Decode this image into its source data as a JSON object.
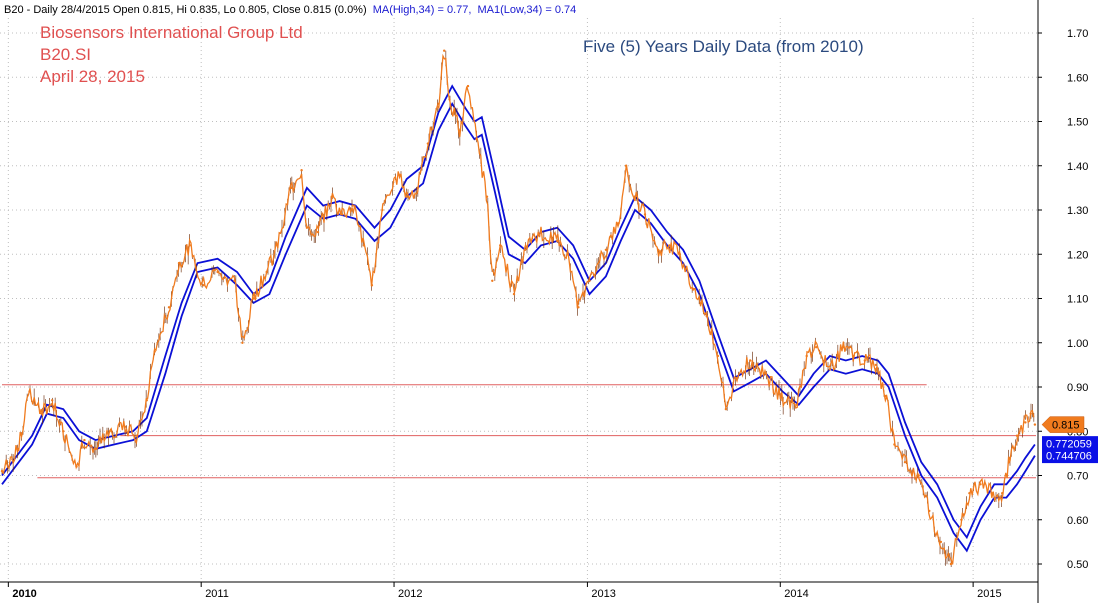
{
  "header": {
    "prefix": "B20 - Daily 28/4/2015 Open 0.815, Hi 0.835, Lo 0.805, Close 0.815 (0.0%)",
    "ma_high": "MA(High,34) = 0.77,",
    "ma_low": "MA1(Low,34) = 0.74"
  },
  "annotations": {
    "company": "Biosensors International Group Ltd",
    "ticker": "B20.SI",
    "date": "April 28, 2015",
    "note": "Five (5) Years Daily Data (from 2010)"
  },
  "colors": {
    "price": "#f07b1e",
    "price_dark": "#6b2a06",
    "ma": "#0b10d6",
    "support_line": "#e06060",
    "grid": "#bfbfbf",
    "text_blue": "#2b4a7f",
    "text_red": "#e05050",
    "axis_text": "#000000"
  },
  "chart_data": {
    "type": "line",
    "title": "",
    "xlabel": "",
    "ylabel": "",
    "ylim": [
      0.47,
      1.73
    ],
    "xlim": [
      "2009-12-20",
      "2015-04-30"
    ],
    "grid": true,
    "y_ticks": [
      "0.50",
      "0.60",
      "0.70",
      "0.80",
      "0.90",
      "1.00",
      "1.10",
      "1.20",
      "1.30",
      "1.40",
      "1.50",
      "1.60",
      "1.70"
    ],
    "x_ticks": [
      {
        "label": "2010",
        "date": "2010-01-01"
      },
      {
        "label": "2011",
        "date": "2011-01-01"
      },
      {
        "label": "2012",
        "date": "2012-01-01"
      },
      {
        "label": "2013",
        "date": "2013-01-01"
      },
      {
        "label": "2014",
        "date": "2014-01-01"
      },
      {
        "label": "2015",
        "date": "2015-01-01"
      }
    ],
    "series": [
      {
        "key": "close",
        "points": [
          [
            "2009-12-20",
            0.71
          ],
          [
            "2010-01-20",
            0.76
          ],
          [
            "2010-02-10",
            0.89
          ],
          [
            "2010-03-05",
            0.84
          ],
          [
            "2010-03-25",
            0.87
          ],
          [
            "2010-04-15",
            0.8
          ],
          [
            "2010-05-10",
            0.72
          ],
          [
            "2010-05-25",
            0.78
          ],
          [
            "2010-06-15",
            0.76
          ],
          [
            "2010-07-15",
            0.8
          ],
          [
            "2010-08-10",
            0.81
          ],
          [
            "2010-09-01",
            0.79
          ],
          [
            "2010-09-20",
            0.87
          ],
          [
            "2010-10-05",
            0.98
          ],
          [
            "2010-11-01",
            1.08
          ],
          [
            "2010-11-20",
            1.18
          ],
          [
            "2010-12-10",
            1.22
          ],
          [
            "2011-01-05",
            1.13
          ],
          [
            "2011-02-01",
            1.16
          ],
          [
            "2011-03-05",
            1.14
          ],
          [
            "2011-03-20",
            1.0
          ],
          [
            "2011-04-10",
            1.1
          ],
          [
            "2011-05-05",
            1.16
          ],
          [
            "2011-05-25",
            1.22
          ],
          [
            "2011-06-20",
            1.35
          ],
          [
            "2011-07-10",
            1.39
          ],
          [
            "2011-07-20",
            1.26
          ],
          [
            "2011-08-10",
            1.25
          ],
          [
            "2011-09-05",
            1.33
          ],
          [
            "2011-09-25",
            1.29
          ],
          [
            "2011-10-15",
            1.31
          ],
          [
            "2011-11-05",
            1.22
          ],
          [
            "2011-11-20",
            1.13
          ],
          [
            "2011-12-10",
            1.3
          ],
          [
            "2012-01-10",
            1.38
          ],
          [
            "2012-01-25",
            1.33
          ],
          [
            "2012-02-15",
            1.35
          ],
          [
            "2012-03-05",
            1.45
          ],
          [
            "2012-03-25",
            1.54
          ],
          [
            "2012-04-05",
            1.66
          ],
          [
            "2012-04-15",
            1.55
          ],
          [
            "2012-05-05",
            1.48
          ],
          [
            "2012-05-20",
            1.58
          ],
          [
            "2012-06-05",
            1.46
          ],
          [
            "2012-06-25",
            1.33
          ],
          [
            "2012-07-05",
            1.14
          ],
          [
            "2012-07-20",
            1.22
          ],
          [
            "2012-08-15",
            1.11
          ],
          [
            "2012-09-05",
            1.21
          ],
          [
            "2012-10-05",
            1.25
          ],
          [
            "2012-11-05",
            1.23
          ],
          [
            "2012-11-25",
            1.2
          ],
          [
            "2012-12-15",
            1.08
          ],
          [
            "2013-01-05",
            1.14
          ],
          [
            "2013-02-05",
            1.21
          ],
          [
            "2013-03-01",
            1.27
          ],
          [
            "2013-03-15",
            1.4
          ],
          [
            "2013-04-01",
            1.33
          ],
          [
            "2013-04-20",
            1.29
          ],
          [
            "2013-05-15",
            1.21
          ],
          [
            "2013-06-05",
            1.22
          ],
          [
            "2013-06-25",
            1.2
          ],
          [
            "2013-07-20",
            1.12
          ],
          [
            "2013-08-15",
            1.06
          ],
          [
            "2013-09-05",
            0.97
          ],
          [
            "2013-09-20",
            0.85
          ],
          [
            "2013-10-10",
            0.92
          ],
          [
            "2013-11-05",
            0.96
          ],
          [
            "2013-12-05",
            0.93
          ],
          [
            "2014-01-05",
            0.87
          ],
          [
            "2014-02-01",
            0.86
          ],
          [
            "2014-02-20",
            0.97
          ],
          [
            "2014-03-10",
            0.99
          ],
          [
            "2014-04-05",
            0.94
          ],
          [
            "2014-05-01",
            0.99
          ],
          [
            "2014-05-20",
            0.97
          ],
          [
            "2014-06-10",
            0.96
          ],
          [
            "2014-07-01",
            0.95
          ],
          [
            "2014-07-20",
            0.88
          ],
          [
            "2014-08-05",
            0.77
          ],
          [
            "2014-08-25",
            0.73
          ],
          [
            "2014-09-20",
            0.7
          ],
          [
            "2014-10-10",
            0.62
          ],
          [
            "2014-11-01",
            0.55
          ],
          [
            "2014-11-20",
            0.5
          ],
          [
            "2014-12-10",
            0.6
          ],
          [
            "2014-12-25",
            0.66
          ],
          [
            "2015-01-15",
            0.68
          ],
          [
            "2015-02-05",
            0.66
          ],
          [
            "2015-02-25",
            0.66
          ],
          [
            "2015-03-10",
            0.73
          ],
          [
            "2015-03-25",
            0.79
          ],
          [
            "2015-04-10",
            0.82
          ],
          [
            "2015-04-20",
            0.84
          ],
          [
            "2015-04-28",
            0.815
          ]
        ]
      },
      {
        "key": "ma_high",
        "name": "MA(High,34)",
        "points": [
          [
            "2009-12-20",
            0.7
          ],
          [
            "2010-02-15",
            0.79
          ],
          [
            "2010-03-15",
            0.86
          ],
          [
            "2010-04-15",
            0.85
          ],
          [
            "2010-05-15",
            0.8
          ],
          [
            "2010-06-15",
            0.78
          ],
          [
            "2010-07-20",
            0.79
          ],
          [
            "2010-08-25",
            0.8
          ],
          [
            "2010-09-20",
            0.83
          ],
          [
            "2010-10-25",
            0.97
          ],
          [
            "2010-11-25",
            1.09
          ],
          [
            "2010-12-25",
            1.18
          ],
          [
            "2011-02-01",
            1.19
          ],
          [
            "2011-03-10",
            1.16
          ],
          [
            "2011-04-10",
            1.11
          ],
          [
            "2011-05-10",
            1.14
          ],
          [
            "2011-06-10",
            1.24
          ],
          [
            "2011-07-20",
            1.35
          ],
          [
            "2011-08-20",
            1.31
          ],
          [
            "2011-09-20",
            1.32
          ],
          [
            "2011-10-20",
            1.31
          ],
          [
            "2011-11-25",
            1.26
          ],
          [
            "2011-12-25",
            1.3
          ],
          [
            "2012-01-25",
            1.37
          ],
          [
            "2012-02-25",
            1.4
          ],
          [
            "2012-03-25",
            1.52
          ],
          [
            "2012-04-20",
            1.58
          ],
          [
            "2012-05-15",
            1.53
          ],
          [
            "2012-06-01",
            1.5
          ],
          [
            "2012-06-15",
            1.51
          ],
          [
            "2012-07-10",
            1.38
          ],
          [
            "2012-08-05",
            1.24
          ],
          [
            "2012-09-05",
            1.21
          ],
          [
            "2012-10-05",
            1.25
          ],
          [
            "2012-11-05",
            1.26
          ],
          [
            "2012-12-05",
            1.22
          ],
          [
            "2013-01-05",
            1.14
          ],
          [
            "2013-02-05",
            1.18
          ],
          [
            "2013-03-05",
            1.26
          ],
          [
            "2013-04-01",
            1.33
          ],
          [
            "2013-05-01",
            1.3
          ],
          [
            "2013-06-01",
            1.25
          ],
          [
            "2013-07-01",
            1.21
          ],
          [
            "2013-08-01",
            1.14
          ],
          [
            "2013-09-05",
            1.02
          ],
          [
            "2013-10-05",
            0.92
          ],
          [
            "2013-11-05",
            0.94
          ],
          [
            "2013-12-05",
            0.96
          ],
          [
            "2014-01-05",
            0.92
          ],
          [
            "2014-02-05",
            0.88
          ],
          [
            "2014-03-05",
            0.93
          ],
          [
            "2014-04-05",
            0.97
          ],
          [
            "2014-05-05",
            0.96
          ],
          [
            "2014-06-05",
            0.97
          ],
          [
            "2014-07-05",
            0.96
          ],
          [
            "2014-07-25",
            0.93
          ],
          [
            "2014-08-25",
            0.82
          ],
          [
            "2014-09-25",
            0.73
          ],
          [
            "2014-10-25",
            0.68
          ],
          [
            "2014-11-25",
            0.6
          ],
          [
            "2014-12-20",
            0.56
          ],
          [
            "2015-01-15",
            0.63
          ],
          [
            "2015-02-10",
            0.68
          ],
          [
            "2015-03-05",
            0.68
          ],
          [
            "2015-03-25",
            0.71
          ],
          [
            "2015-04-10",
            0.74
          ],
          [
            "2015-04-28",
            0.77
          ]
        ]
      },
      {
        "key": "ma_low",
        "name": "MA1(Low,34)",
        "points": [
          [
            "2009-12-20",
            0.68
          ],
          [
            "2010-02-15",
            0.77
          ],
          [
            "2010-03-15",
            0.84
          ],
          [
            "2010-04-15",
            0.83
          ],
          [
            "2010-05-15",
            0.78
          ],
          [
            "2010-06-15",
            0.76
          ],
          [
            "2010-07-20",
            0.77
          ],
          [
            "2010-08-25",
            0.78
          ],
          [
            "2010-09-20",
            0.8
          ],
          [
            "2010-10-25",
            0.93
          ],
          [
            "2010-11-25",
            1.06
          ],
          [
            "2010-12-25",
            1.16
          ],
          [
            "2011-02-01",
            1.17
          ],
          [
            "2011-03-10",
            1.13
          ],
          [
            "2011-04-10",
            1.09
          ],
          [
            "2011-05-10",
            1.11
          ],
          [
            "2011-06-10",
            1.2
          ],
          [
            "2011-07-20",
            1.31
          ],
          [
            "2011-08-20",
            1.28
          ],
          [
            "2011-09-20",
            1.29
          ],
          [
            "2011-10-20",
            1.28
          ],
          [
            "2011-11-25",
            1.23
          ],
          [
            "2011-12-25",
            1.26
          ],
          [
            "2012-01-25",
            1.33
          ],
          [
            "2012-02-25",
            1.36
          ],
          [
            "2012-03-25",
            1.48
          ],
          [
            "2012-04-20",
            1.54
          ],
          [
            "2012-05-15",
            1.49
          ],
          [
            "2012-06-01",
            1.46
          ],
          [
            "2012-06-15",
            1.47
          ],
          [
            "2012-07-10",
            1.34
          ],
          [
            "2012-08-05",
            1.2
          ],
          [
            "2012-09-05",
            1.18
          ],
          [
            "2012-10-05",
            1.22
          ],
          [
            "2012-11-05",
            1.23
          ],
          [
            "2012-12-05",
            1.19
          ],
          [
            "2013-01-05",
            1.11
          ],
          [
            "2013-02-05",
            1.15
          ],
          [
            "2013-03-05",
            1.23
          ],
          [
            "2013-04-01",
            1.3
          ],
          [
            "2013-05-01",
            1.27
          ],
          [
            "2013-06-01",
            1.22
          ],
          [
            "2013-07-01",
            1.18
          ],
          [
            "2013-08-01",
            1.11
          ],
          [
            "2013-09-05",
            0.99
          ],
          [
            "2013-10-05",
            0.89
          ],
          [
            "2013-11-05",
            0.91
          ],
          [
            "2013-12-05",
            0.93
          ],
          [
            "2014-01-05",
            0.89
          ],
          [
            "2014-02-05",
            0.86
          ],
          [
            "2014-03-05",
            0.9
          ],
          [
            "2014-04-05",
            0.94
          ],
          [
            "2014-05-05",
            0.93
          ],
          [
            "2014-06-05",
            0.94
          ],
          [
            "2014-07-05",
            0.93
          ],
          [
            "2014-07-25",
            0.9
          ],
          [
            "2014-08-25",
            0.79
          ],
          [
            "2014-09-25",
            0.7
          ],
          [
            "2014-10-25",
            0.65
          ],
          [
            "2014-11-25",
            0.57
          ],
          [
            "2014-12-20",
            0.53
          ],
          [
            "2015-01-15",
            0.6
          ],
          [
            "2015-02-10",
            0.65
          ],
          [
            "2015-03-05",
            0.65
          ],
          [
            "2015-03-25",
            0.68
          ],
          [
            "2015-04-10",
            0.71
          ],
          [
            "2015-04-28",
            0.745
          ]
        ]
      }
    ],
    "horizontal_lines": [
      {
        "y": 0.905,
        "from": "2009-12-20",
        "to": "2014-10-05"
      },
      {
        "y": 0.79,
        "from": "2010-08-01",
        "to": "2015-04-30"
      },
      {
        "y": 0.695,
        "from": "2010-02-25",
        "to": "2015-04-30"
      }
    ],
    "value_labels": [
      {
        "text": "0.815",
        "y": 0.815,
        "style": "price"
      },
      {
        "text": "0.772059",
        "y": 0.772,
        "style": "ma"
      },
      {
        "text": "0.744706",
        "y": 0.745,
        "style": "ma"
      }
    ]
  }
}
